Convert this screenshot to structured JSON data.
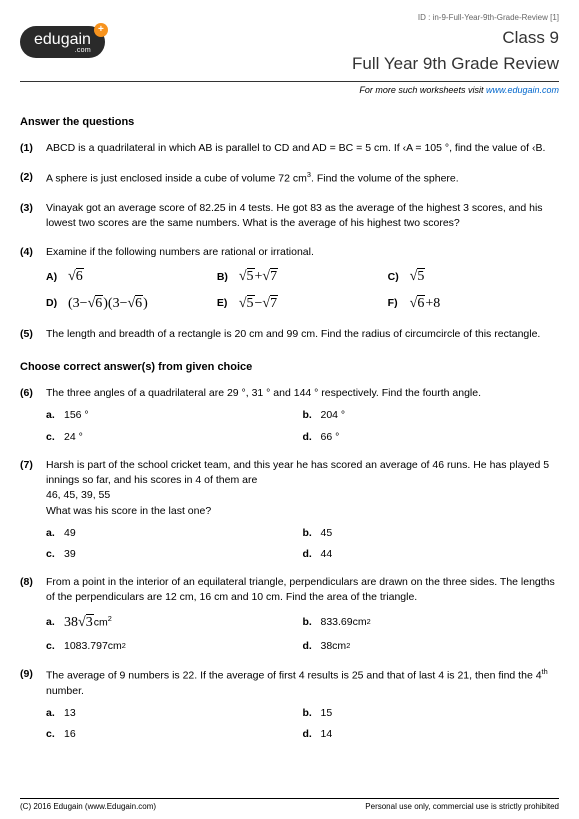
{
  "header": {
    "id_line": "ID : in-9-Full-Year-9th-Grade-Review [1]",
    "logo_text": "edugain",
    "logo_dotcom": ".com",
    "class_label": "Class 9",
    "title": "Full Year 9th Grade Review",
    "subhead_prefix": "For more such worksheets visit ",
    "subhead_link": "www.edugain.com"
  },
  "section1_title": "Answer the questions",
  "q1": {
    "num": "(1)",
    "text": "ABCD is a quadrilateral in which AB is parallel to CD and AD = BC = 5 cm. If ‹A = 105 °, find the value of ‹B."
  },
  "q2": {
    "num": "(2)",
    "text_a": "A sphere is just enclosed inside a cube of volume 72 cm",
    "text_b": ". Find the volume of the sphere."
  },
  "q3": {
    "num": "(3)",
    "text": "Vinayak got an average score of 82.25 in 4 tests. He got 83 as the average of the highest 3 scores, and his lowest two scores are the same numbers. What is the average of his highest two scores?"
  },
  "q4": {
    "num": "(4)",
    "text": "Examine if the following numbers are rational or irrational.",
    "labels": {
      "A": "A)",
      "B": "B)",
      "C": "C)",
      "D": "D)",
      "E": "E)",
      "F": "F)"
    }
  },
  "q5": {
    "num": "(5)",
    "text": "The length and breadth of a rectangle is 20 cm and 99 cm. Find the radius of circumcircle of this rectangle."
  },
  "section2_title": "Choose correct answer(s) from given choice",
  "q6": {
    "num": "(6)",
    "text": "The three angles of a quadrilateral are 29 °, 31 ° and 144 ° respectively. Find the fourth angle.",
    "a": "a.",
    "av": "156 °",
    "b": "b.",
    "bv": "204 °",
    "c": "c.",
    "cv": "24 °",
    "d": "d.",
    "dv": "66 °"
  },
  "q7": {
    "num": "(7)",
    "text1": "Harsh is part of the school cricket team, and this year he has scored an average of 46 runs. He has played 5 innings so far, and his scores in 4 of them are",
    "text2": "46, 45, 39, 55",
    "text3": "What was his score in the last one?",
    "a": "a.",
    "av": "49",
    "b": "b.",
    "bv": "45",
    "c": "c.",
    "cv": "39",
    "d": "d.",
    "dv": "44"
  },
  "q8": {
    "num": "(8)",
    "text": "From a point in the interior of an equilateral triangle, perpendiculars are drawn on the three sides. The lengths of the perpendiculars are 12 cm, 16 cm and 10 cm. Find the area of the triangle.",
    "a": "a.",
    "b": "b.",
    "bv": "833.69cm",
    "c": "c.",
    "cv": "1083.797cm",
    "d": "d.",
    "dv": "38cm"
  },
  "q9": {
    "num": "(9)",
    "text_a": "The average of 9 numbers is 22. If the average of first 4 results is 25 and that of last 4 is 21, then find the 4",
    "text_b": " number.",
    "a": "a.",
    "av": "13",
    "b": "b.",
    "bv": "15",
    "c": "c.",
    "cv": "16",
    "d": "d.",
    "dv": "14"
  },
  "footer": {
    "left": "(C) 2016 Edugain (www.Edugain.com)",
    "right": "Personal use only, commercial use is strictly prohibited"
  }
}
